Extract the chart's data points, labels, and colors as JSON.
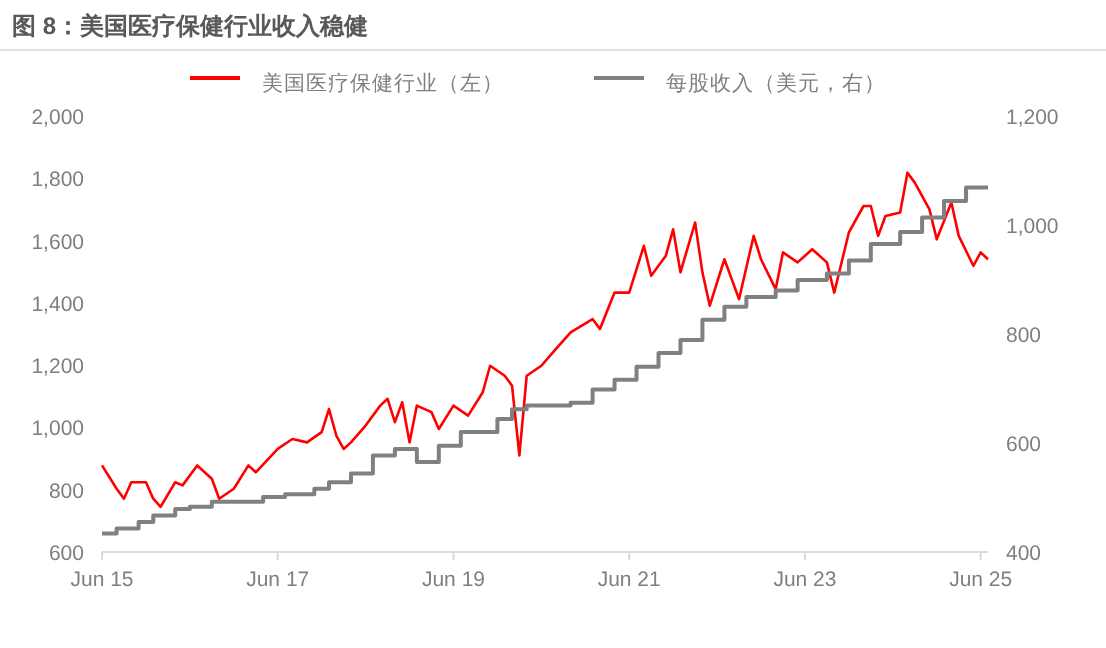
{
  "chart_data": {
    "type": "line",
    "title": "图 8：美国医疗保健行业收入稳健",
    "legend": "top",
    "xlim": [
      "2015-06",
      "2025-07"
    ],
    "xticks": [
      {
        "value": "2015-06",
        "label": "Jun 15"
      },
      {
        "value": "2017-06",
        "label": "Jun 17"
      },
      {
        "value": "2019-06",
        "label": "Jun 19"
      },
      {
        "value": "2021-06",
        "label": "Jun 21"
      },
      {
        "value": "2023-06",
        "label": "Jun 23"
      },
      {
        "value": "2025-06",
        "label": "Jun 25"
      }
    ],
    "ylim": [
      600,
      2000
    ],
    "yticks": [
      {
        "value": 600,
        "label": "600"
      },
      {
        "value": 800,
        "label": "800"
      },
      {
        "value": 1000,
        "label": "1,000"
      },
      {
        "value": 1200,
        "label": "1,200"
      },
      {
        "value": 1400,
        "label": "1,400"
      },
      {
        "value": 1600,
        "label": "1,600"
      },
      {
        "value": 1800,
        "label": "1,800"
      },
      {
        "value": 2000,
        "label": "2,000"
      }
    ],
    "y2lim": [
      400,
      1200
    ],
    "y2ticks": [
      {
        "value": 400,
        "label": "400"
      },
      {
        "value": 600,
        "label": "600"
      },
      {
        "value": 800,
        "label": "800"
      },
      {
        "value": 1000,
        "label": "1,000"
      },
      {
        "value": 1200,
        "label": "1,200"
      }
    ],
    "series": [
      {
        "name": "美国医疗保健行业（左）",
        "color": "#ff0000",
        "x": [
          "2015-06",
          "2015-08",
          "2015-09",
          "2015-10",
          "2015-12",
          "2016-01",
          "2016-02",
          "2016-04",
          "2016-05",
          "2016-07",
          "2016-09",
          "2016-10",
          "2016-12",
          "2017-02",
          "2017-03",
          "2017-06",
          "2017-08",
          "2017-10",
          "2017-12",
          "2018-01",
          "2018-02",
          "2018-03",
          "2018-04",
          "2018-06",
          "2018-08",
          "2018-09",
          "2018-10",
          "2018-11",
          "2018-12",
          "2019-01",
          "2019-03",
          "2019-04",
          "2019-06",
          "2019-08",
          "2019-10",
          "2019-11",
          "2020-01",
          "2020-02",
          "2020-03",
          "2020-04",
          "2020-06",
          "2020-08",
          "2020-10",
          "2021-01",
          "2021-02",
          "2021-04",
          "2021-06",
          "2021-08",
          "2021-09",
          "2021-11",
          "2021-12",
          "2022-01",
          "2022-03",
          "2022-04",
          "2022-05",
          "2022-07",
          "2022-09",
          "2022-11",
          "2022-12",
          "2023-02",
          "2023-03",
          "2023-05",
          "2023-07",
          "2023-09",
          "2023-10",
          "2023-12",
          "2024-02",
          "2024-03",
          "2024-04",
          "2024-05",
          "2024-07",
          "2024-08",
          "2024-09",
          "2024-11",
          "2024-12",
          "2025-02",
          "2025-03",
          "2025-05",
          "2025-06",
          "2025-07"
        ],
        "values": [
          878,
          803,
          771,
          824,
          824,
          771,
          745,
          824,
          814,
          878,
          835,
          771,
          803,
          878,
          856,
          931,
          963,
          952,
          985,
          1059,
          974,
          931,
          952,
          1006,
          1070,
          1092,
          1017,
          1081,
          952,
          1070,
          1049,
          995,
          1070,
          1038,
          1113,
          1198,
          1166,
          1134,
          910,
          1166,
          1198,
          1252,
          1305,
          1348,
          1316,
          1433,
          1433,
          1583,
          1487,
          1551,
          1636,
          1498,
          1658,
          1498,
          1391,
          1540,
          1412,
          1615,
          1540,
          1444,
          1562,
          1530,
          1572,
          1530,
          1433,
          1626,
          1711,
          1711,
          1615,
          1679,
          1690,
          1818,
          1786,
          1700,
          1604,
          1722,
          1615,
          1519,
          1562,
          1540
        ]
      },
      {
        "name": "每股收入（美元，右）",
        "type": "step",
        "axis": "y2",
        "color": "#808080",
        "x": [
          "2015-06",
          "2015-08",
          "2015-11",
          "2016-01",
          "2016-04",
          "2016-06",
          "2016-09",
          "2017-04",
          "2017-07",
          "2017-11",
          "2018-01",
          "2018-04",
          "2018-07",
          "2018-10",
          "2019-01",
          "2019-04",
          "2019-07",
          "2019-12",
          "2020-02",
          "2020-04",
          "2020-10",
          "2021-01",
          "2021-04",
          "2021-07",
          "2021-10",
          "2022-01",
          "2022-04",
          "2022-07",
          "2022-10",
          "2023-02",
          "2023-05",
          "2023-09",
          "2023-12",
          "2024-03",
          "2024-07",
          "2024-10",
          "2025-01",
          "2025-04",
          "2025-07"
        ],
        "values": [
          434,
          443,
          455,
          467,
          479,
          483,
          492,
          501,
          506,
          516,
          528,
          544,
          577,
          589,
          565,
          595,
          620,
          644,
          662,
          669,
          674,
          698,
          716,
          740,
          765,
          789,
          826,
          850,
          868,
          880,
          899,
          911,
          935,
          965,
          987,
          1014,
          1044,
          1069,
          1069
        ]
      }
    ]
  }
}
